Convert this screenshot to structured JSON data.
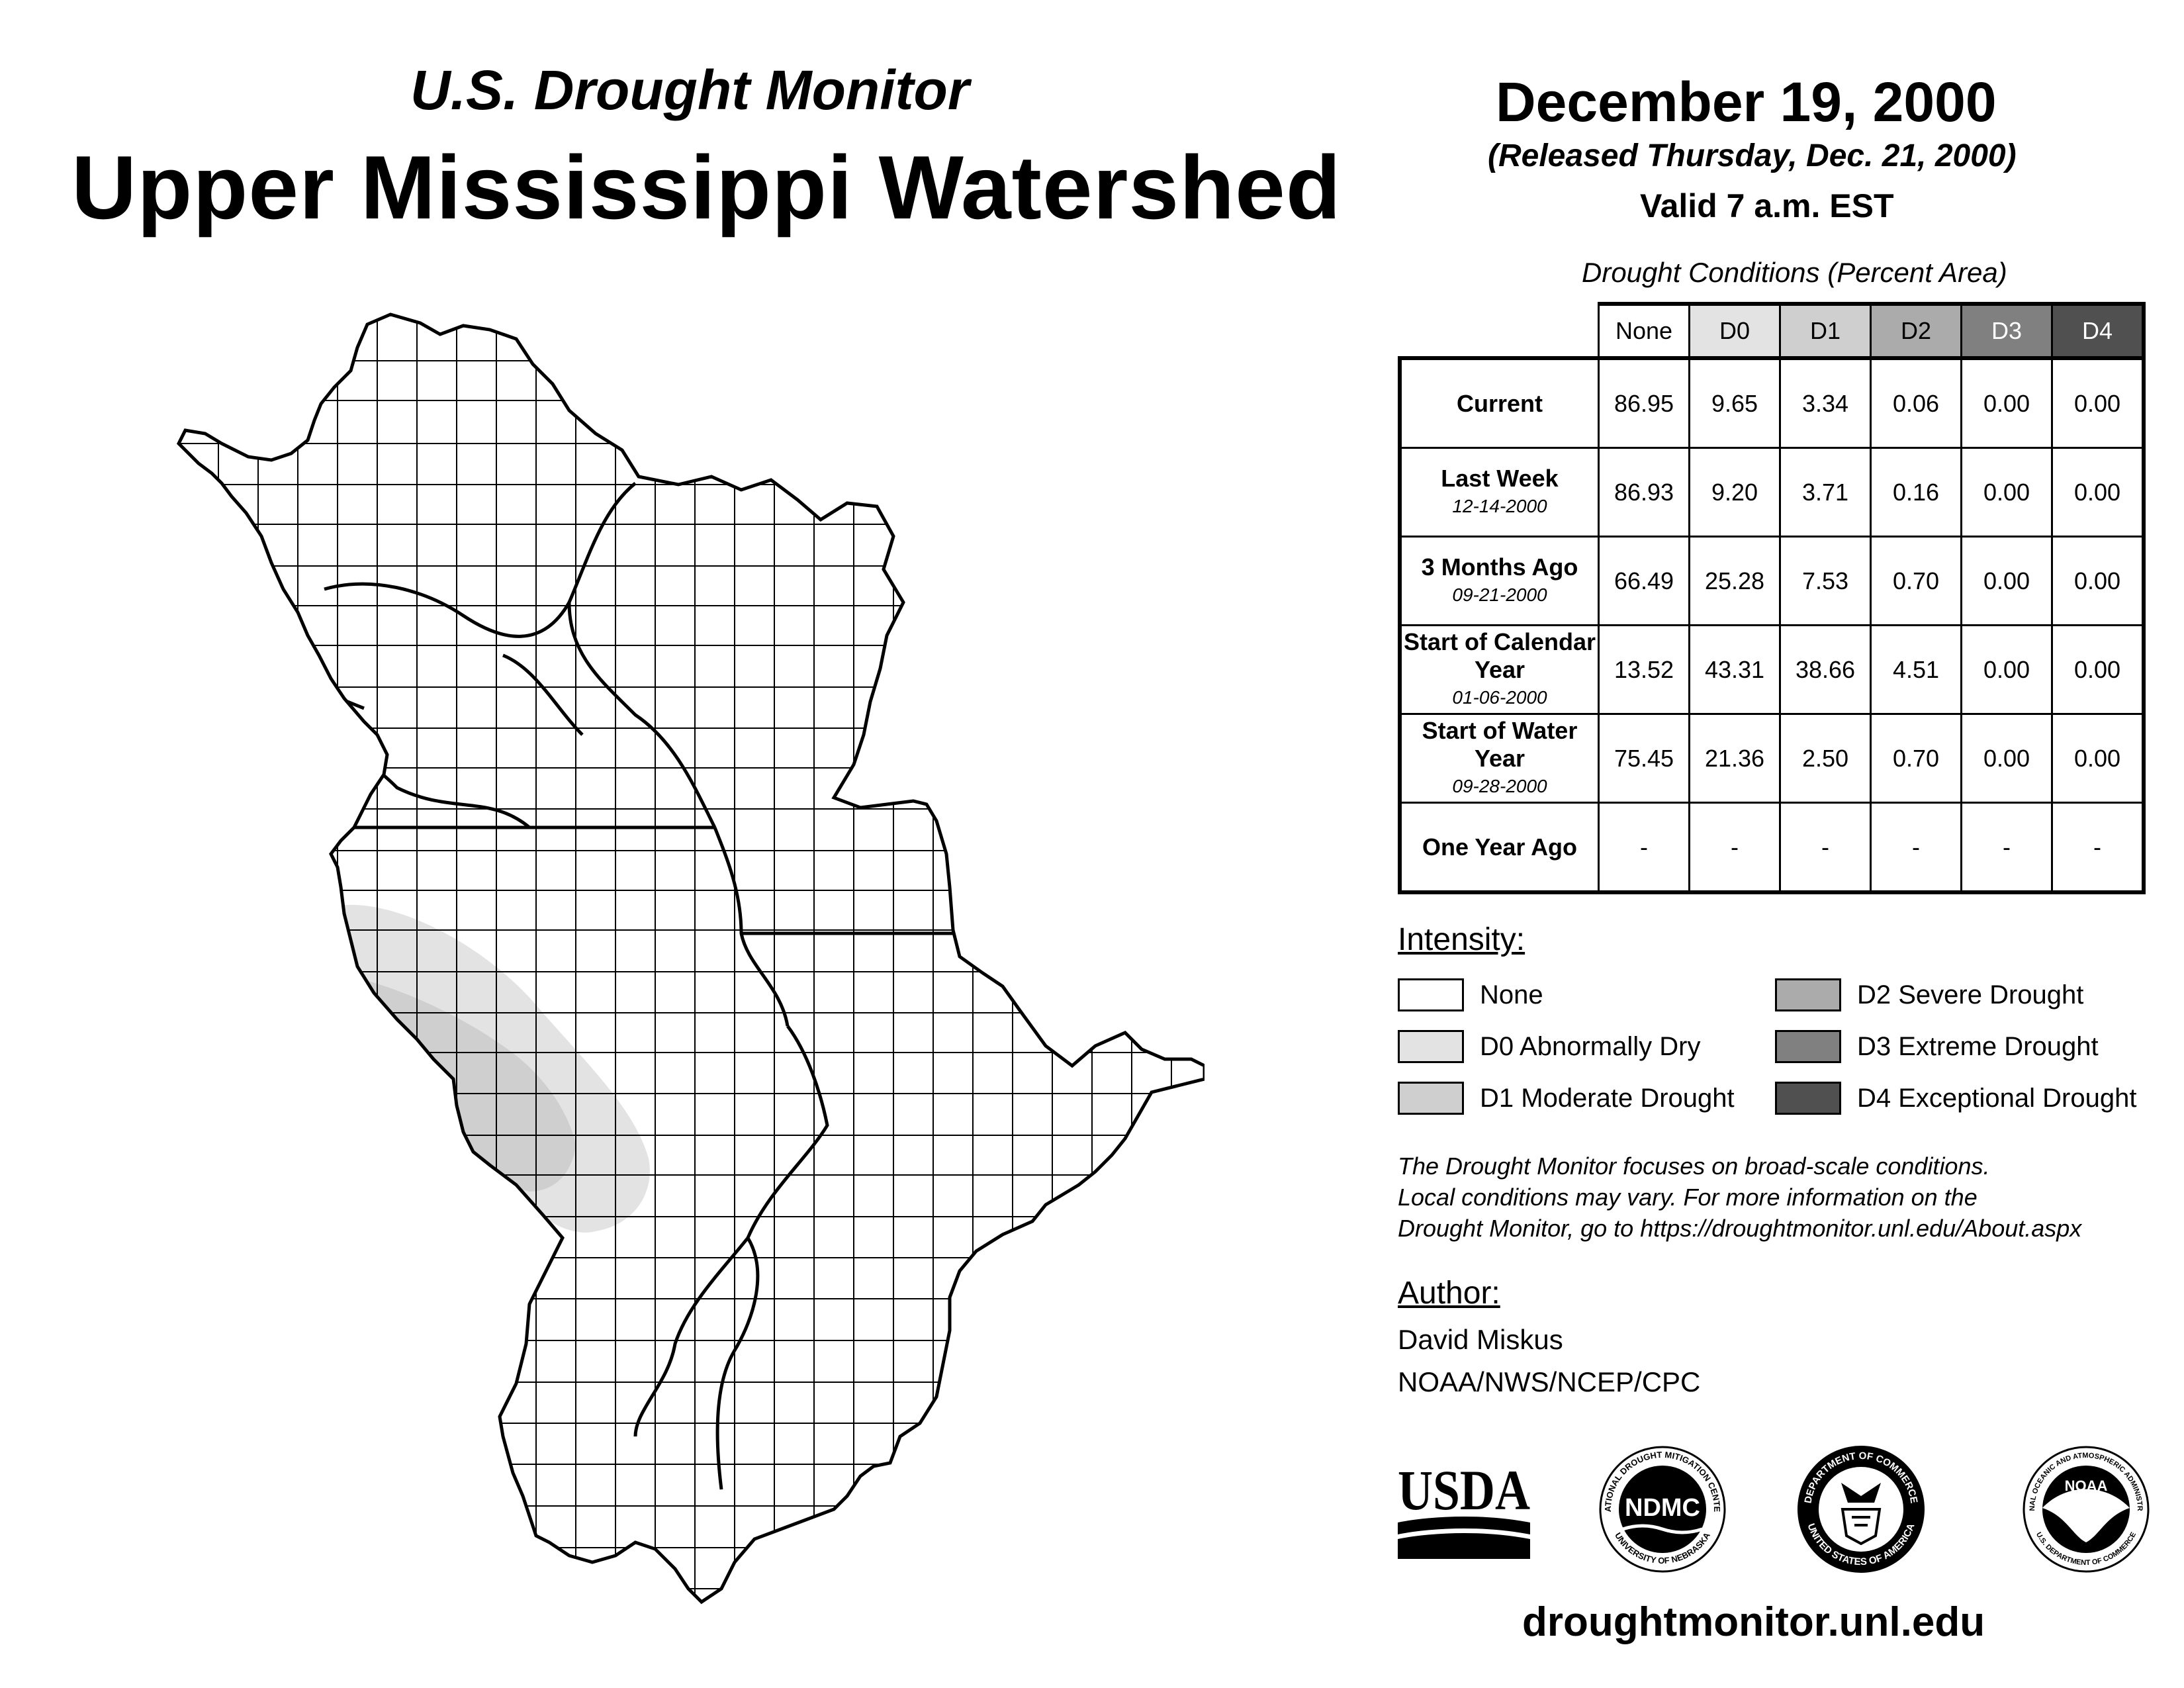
{
  "header": {
    "subtitle": "U.S. Drought Monitor",
    "title": "Upper Mississippi Watershed",
    "date": "December 19, 2000",
    "released": "(Released Thursday, Dec. 21, 2000)",
    "valid": "Valid 7 a.m. EST"
  },
  "table": {
    "caption": "Drought Conditions (Percent Area)",
    "columns": [
      "None",
      "D0",
      "D1",
      "D2",
      "D3",
      "D4"
    ],
    "rows": [
      {
        "label": "Current",
        "sub": "",
        "values": [
          "86.95",
          "9.65",
          "3.34",
          "0.06",
          "0.00",
          "0.00"
        ]
      },
      {
        "label": "Last Week",
        "sub": "12-14-2000",
        "values": [
          "86.93",
          "9.20",
          "3.71",
          "0.16",
          "0.00",
          "0.00"
        ]
      },
      {
        "label": "3 Months Ago",
        "sub": "09-21-2000",
        "values": [
          "66.49",
          "25.28",
          "7.53",
          "0.70",
          "0.00",
          "0.00"
        ]
      },
      {
        "label": "Start of Calendar Year",
        "sub": "01-06-2000",
        "values": [
          "13.52",
          "43.31",
          "38.66",
          "4.51",
          "0.00",
          "0.00"
        ]
      },
      {
        "label": "Start of Water Year",
        "sub": "09-28-2000",
        "values": [
          "75.45",
          "21.36",
          "2.50",
          "0.70",
          "0.00",
          "0.00"
        ]
      },
      {
        "label": "One Year Ago",
        "sub": "",
        "values": [
          "-",
          "-",
          "-",
          "-",
          "-",
          "-"
        ]
      }
    ]
  },
  "legend": {
    "title": "Intensity:",
    "items": [
      {
        "label": "None",
        "color": "#ffffff"
      },
      {
        "label": "D0 Abnormally Dry",
        "color": "#e3e3e3"
      },
      {
        "label": "D1 Moderate Drought",
        "color": "#cfcfcf"
      },
      {
        "label": "D2 Severe Drought",
        "color": "#ababab"
      },
      {
        "label": "D3 Extreme Drought",
        "color": "#808080"
      },
      {
        "label": "D4 Exceptional Drought",
        "color": "#505050"
      }
    ]
  },
  "disclaimer": {
    "line1": "The Drought Monitor focuses on broad-scale conditions.",
    "line2": "Local conditions may vary. For more information on the",
    "line3": "Drought Monitor, go to https://droughtmonitor.unl.edu/About.aspx"
  },
  "author": {
    "title": "Author:",
    "name": "David Miskus",
    "org": "NOAA/NWS/NCEP/CPC"
  },
  "logos": {
    "usda": "USDA",
    "ndmc": "NDMC",
    "ndmc_ring_top": "NATIONAL DROUGHT MITIGATION CENTER",
    "ndmc_ring_bottom": "UNIVERSITY OF NEBRASKA",
    "doc_ring_top": "DEPARTMENT OF COMMERCE",
    "doc_ring_bottom": "UNITED STATES OF AMERICA",
    "noaa": "NOAA",
    "noaa_ring_top": "NATIONAL OCEANIC AND ATMOSPHERIC ADMINISTRATION",
    "noaa_ring_bottom": "U.S. DEPARTMENT OF COMMERCE"
  },
  "footer": {
    "url": "droughtmonitor.unl.edu"
  }
}
